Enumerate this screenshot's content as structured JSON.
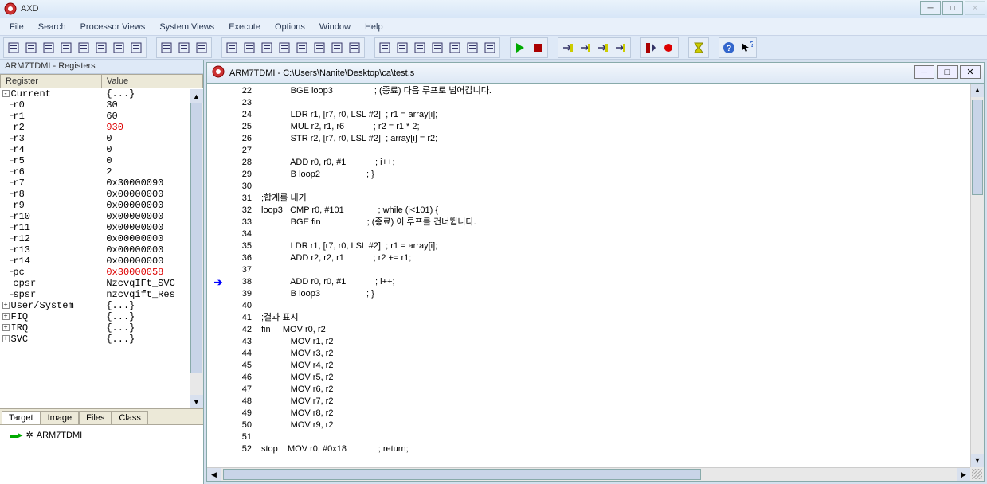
{
  "window": {
    "title": "AXD"
  },
  "menus": [
    "File",
    "Search",
    "Processor Views",
    "System Views",
    "Execute",
    "Options",
    "Window",
    "Help"
  ],
  "toolbar": {
    "groups": [
      {
        "icons": [
          "file-search",
          "folder-open",
          "files",
          "disk",
          "arrows-recycle",
          "page",
          "blank",
          "arrow-right"
        ]
      },
      {
        "icons": [
          "page-lines",
          "doc",
          "page-grid"
        ]
      },
      {
        "icons": [
          "box-r",
          "box-search",
          "box-v",
          "box-grid",
          "box-stack",
          "box-bars",
          "box-cols",
          "box-magnify"
        ]
      },
      {
        "icons": [
          "box-f",
          "box-r2",
          "box-search2",
          "box-list",
          "box-panels",
          "box-rows",
          "box-table"
        ]
      },
      {
        "icons": [
          "play",
          "stop"
        ]
      },
      {
        "icons": [
          "step-into",
          "step-over",
          "step-out",
          "step-to"
        ]
      },
      {
        "icons": [
          "cursor-stop",
          "breakpoint"
        ]
      },
      {
        "icons": [
          "hourglass"
        ]
      },
      {
        "icons": [
          "help",
          "pointer-help"
        ]
      }
    ]
  },
  "registers": {
    "panelTitle": "ARM7TDMI - Registers",
    "headers": [
      "Register",
      "Value"
    ],
    "current": {
      "label": "Current",
      "value": "{...}"
    },
    "rows": [
      {
        "n": "r0",
        "v": "30"
      },
      {
        "n": "r1",
        "v": "60"
      },
      {
        "n": "r2",
        "v": "930",
        "red": true
      },
      {
        "n": "r3",
        "v": "0"
      },
      {
        "n": "r4",
        "v": "0"
      },
      {
        "n": "r5",
        "v": "0"
      },
      {
        "n": "r6",
        "v": "2"
      },
      {
        "n": "r7",
        "v": "0x30000090"
      },
      {
        "n": "r8",
        "v": "0x00000000"
      },
      {
        "n": "r9",
        "v": "0x00000000"
      },
      {
        "n": "r10",
        "v": "0x00000000"
      },
      {
        "n": "r11",
        "v": "0x00000000"
      },
      {
        "n": "r12",
        "v": "0x00000000"
      },
      {
        "n": "r13",
        "v": "0x00000000"
      },
      {
        "n": "r14",
        "v": "0x00000000"
      },
      {
        "n": "pc",
        "v": "0x30000058",
        "red": true
      },
      {
        "n": "cpsr",
        "v": "NzcvqIFt_SVC"
      },
      {
        "n": "spsr",
        "v": "nzcvqift_Res"
      }
    ],
    "modes": [
      {
        "n": "User/System",
        "v": "{...}"
      },
      {
        "n": "FIQ",
        "v": "{...}"
      },
      {
        "n": "IRQ",
        "v": "{...}"
      },
      {
        "n": "SVC",
        "v": "{...}"
      }
    ]
  },
  "tabs": [
    "Target",
    "Image",
    "Files",
    "Class"
  ],
  "target": {
    "item": "ARM7TDMI"
  },
  "code": {
    "title": "ARM7TDMI - C:\\Users\\Nanite\\Desktop\\ca\\test.s",
    "currentLine": 38,
    "lines": [
      {
        "n": 22,
        "t": "            BGE loop3                 ; (종료) 다음 루프로 넘어갑니다."
      },
      {
        "n": 23,
        "t": ""
      },
      {
        "n": 24,
        "t": "            LDR r1, [r7, r0, LSL #2]  ; r1 = array[i];"
      },
      {
        "n": 25,
        "t": "            MUL r2, r1, r6            ; r2 = r1 * 2;"
      },
      {
        "n": 26,
        "t": "            STR r2, [r7, r0, LSL #2]  ; array[i] = r2;"
      },
      {
        "n": 27,
        "t": ""
      },
      {
        "n": 28,
        "t": "            ADD r0, r0, #1            ; i++;"
      },
      {
        "n": 29,
        "t": "            B loop2                   ; }"
      },
      {
        "n": 30,
        "t": ""
      },
      {
        "n": 31,
        "t": ";합계를 내기"
      },
      {
        "n": 32,
        "t": "loop3   CMP r0, #101              ; while (i<101) {"
      },
      {
        "n": 33,
        "t": "            BGE fin                   ; (종료) 이 루프를 건너뜁니다."
      },
      {
        "n": 34,
        "t": ""
      },
      {
        "n": 35,
        "t": "            LDR r1, [r7, r0, LSL #2]  ; r1 = array[i];"
      },
      {
        "n": 36,
        "t": "            ADD r2, r2, r1            ; r2 += r1;"
      },
      {
        "n": 37,
        "t": ""
      },
      {
        "n": 38,
        "t": "            ADD r0, r0, #1            ; i++;"
      },
      {
        "n": 39,
        "t": "            B loop3                   ; }"
      },
      {
        "n": 40,
        "t": ""
      },
      {
        "n": 41,
        "t": ";결과 표시"
      },
      {
        "n": 42,
        "t": "fin     MOV r0, r2"
      },
      {
        "n": 43,
        "t": "            MOV r1, r2"
      },
      {
        "n": 44,
        "t": "            MOV r3, r2"
      },
      {
        "n": 45,
        "t": "            MOV r4, r2"
      },
      {
        "n": 46,
        "t": "            MOV r5, r2"
      },
      {
        "n": 47,
        "t": "            MOV r6, r2"
      },
      {
        "n": 48,
        "t": "            MOV r7, r2"
      },
      {
        "n": 49,
        "t": "            MOV r8, r2"
      },
      {
        "n": 50,
        "t": "            MOV r9, r2"
      },
      {
        "n": 51,
        "t": ""
      },
      {
        "n": 52,
        "t": "stop    MOV r0, #0x18             ; return;"
      }
    ]
  },
  "colors": {
    "accent": "#d00",
    "bg": "#d4e0ee",
    "panel": "#dee9f7",
    "border": "#8aa"
  }
}
